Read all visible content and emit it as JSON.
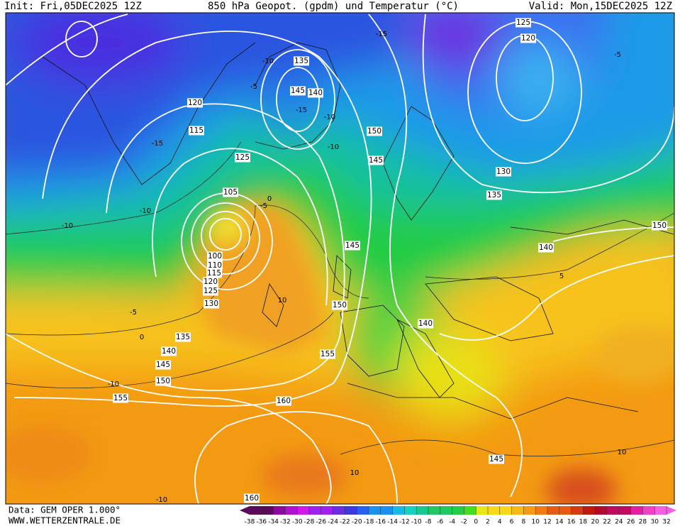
{
  "header": {
    "init": "Init: Fri,05DEC2025 12Z",
    "title": "850 hPa Geopot. (gpdm) und Temperatur (°C)",
    "valid": "Valid: Mon,15DEC2025 12Z"
  },
  "footer": {
    "data": "Data: GEM OPER 1.000°",
    "site": "WWW.WETTERZENTRALE.DE"
  },
  "colorbar": {
    "ticks": [
      -38,
      -36,
      -34,
      -32,
      -30,
      -28,
      -26,
      -24,
      -22,
      -20,
      -18,
      -16,
      -14,
      -12,
      -10,
      -8,
      -6,
      -4,
      -2,
      0,
      2,
      4,
      6,
      8,
      10,
      12,
      14,
      16,
      18,
      20,
      22,
      24,
      26,
      28,
      30,
      32
    ]
  },
  "map": {
    "geopotential_labels": [
      125,
      120,
      135,
      145,
      140,
      120,
      115,
      150,
      125,
      145,
      130,
      105,
      135,
      150,
      145,
      140,
      100,
      110,
      115,
      120,
      125,
      130,
      150,
      140,
      135,
      140,
      145,
      155,
      150,
      160,
      155,
      145,
      160
    ],
    "temperature_labels": [
      -15,
      -10,
      -5,
      -15,
      -10,
      -10,
      -15,
      0,
      -5,
      -10,
      -10,
      -5,
      0,
      10,
      -10,
      10,
      10,
      -10,
      5,
      -5
    ]
  }
}
